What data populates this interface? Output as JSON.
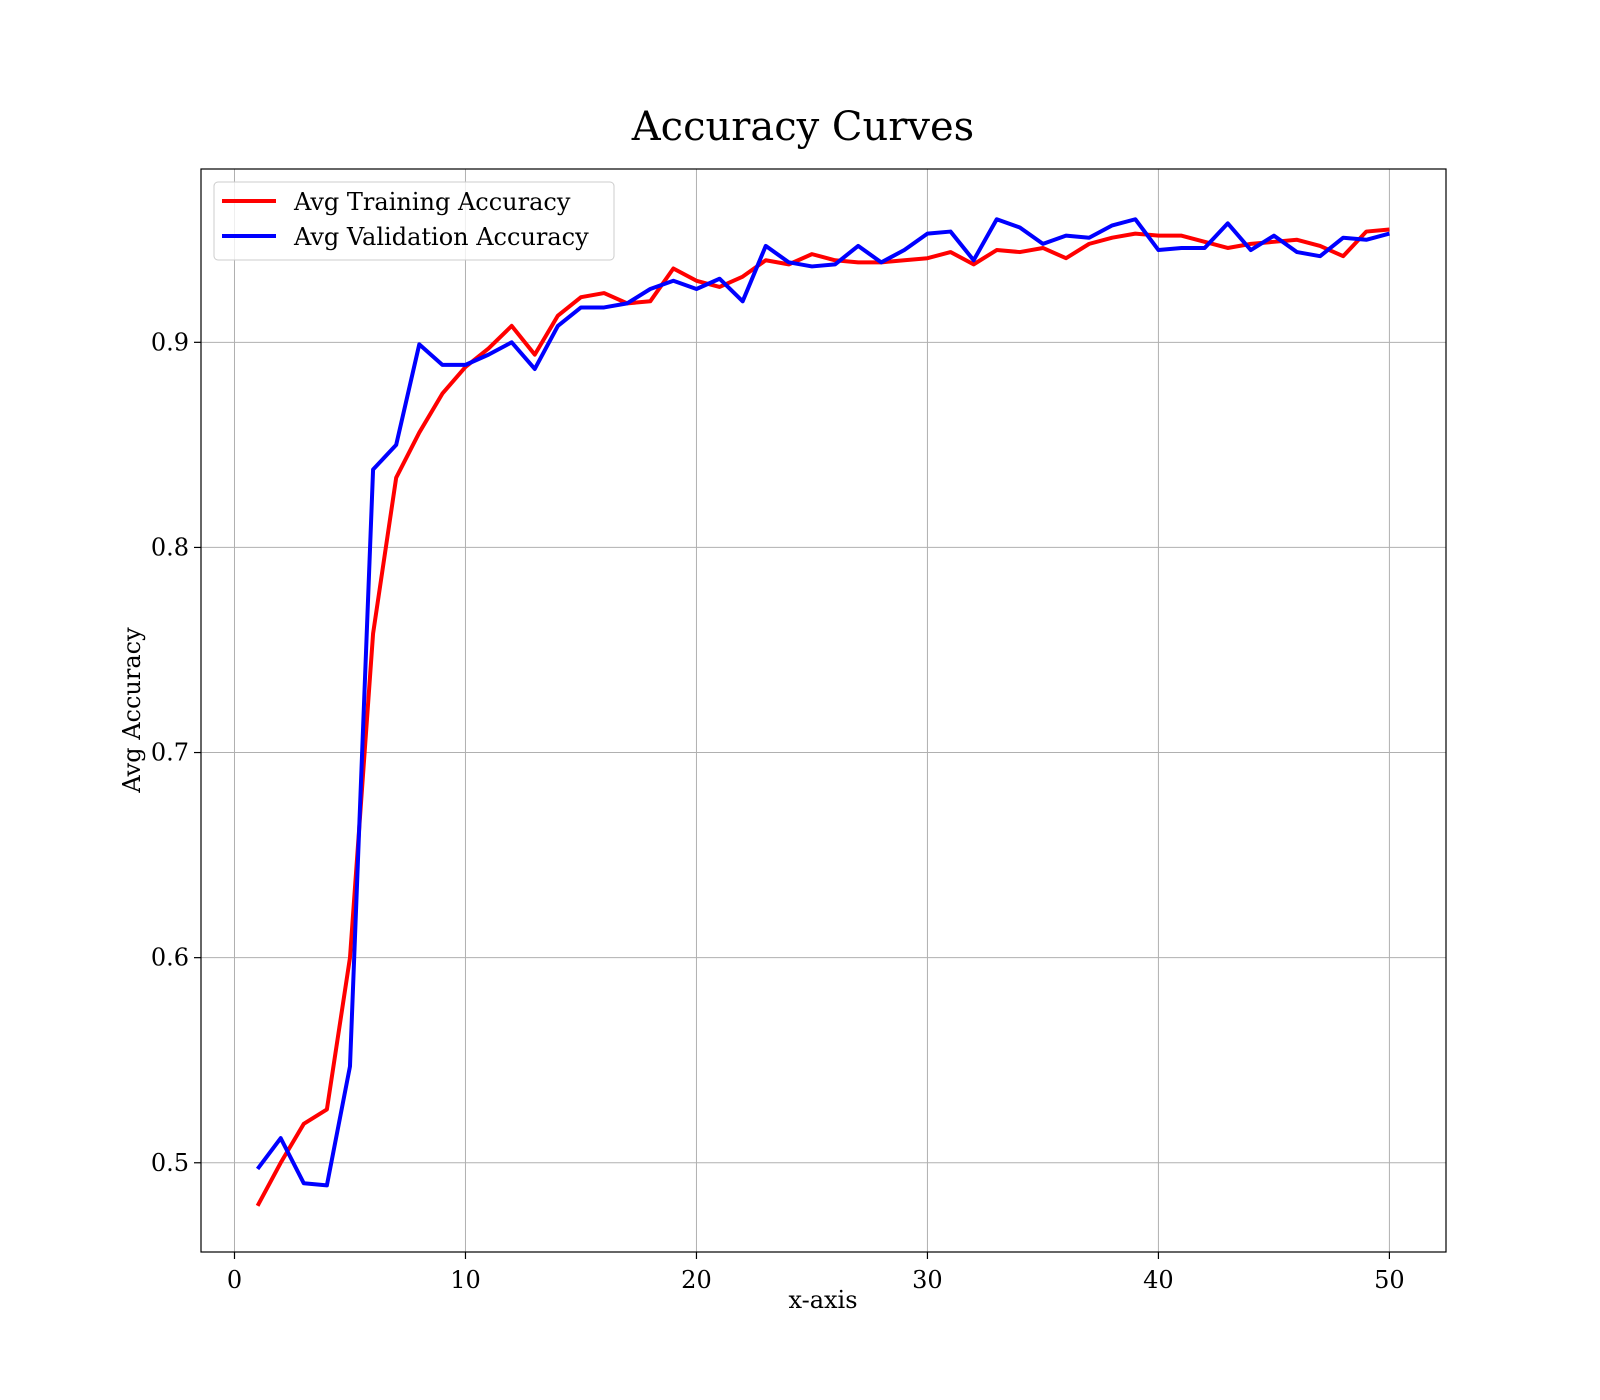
{
  "chart_data": {
    "type": "line",
    "title": "Accuracy Curves",
    "xlabel": "x-axis",
    "ylabel": "Avg Accuracy",
    "xlim": [
      -1.45,
      52.45
    ],
    "ylim": [
      0.4565,
      0.9845
    ],
    "xticks": [
      0,
      10,
      20,
      30,
      40,
      50
    ],
    "yticks": [
      0.5,
      0.6,
      0.7,
      0.8,
      0.9
    ],
    "xtick_labels": [
      "0",
      "10",
      "20",
      "30",
      "40",
      "50"
    ],
    "ytick_labels": [
      "0.5",
      "0.6",
      "0.7",
      "0.8",
      "0.9"
    ],
    "grid": true,
    "legend_position": "top-left",
    "x": [
      1,
      2,
      3,
      4,
      5,
      6,
      7,
      8,
      9,
      10,
      11,
      12,
      13,
      14,
      15,
      16,
      17,
      18,
      19,
      20,
      21,
      22,
      23,
      24,
      25,
      26,
      27,
      28,
      29,
      30,
      31,
      32,
      33,
      34,
      35,
      36,
      37,
      38,
      39,
      40,
      41,
      42,
      43,
      44,
      45,
      46,
      47,
      48,
      49,
      50
    ],
    "series": [
      {
        "name": "Avg Training Accuracy",
        "color": "#ff0000",
        "values": [
          0.479,
          0.5,
          0.519,
          0.526,
          0.6,
          0.758,
          0.834,
          0.856,
          0.875,
          0.888,
          0.897,
          0.908,
          0.894,
          0.913,
          0.922,
          0.924,
          0.919,
          0.92,
          0.936,
          0.93,
          0.927,
          0.932,
          0.94,
          0.938,
          0.943,
          0.94,
          0.939,
          0.939,
          0.94,
          0.941,
          0.944,
          0.938,
          0.945,
          0.944,
          0.946,
          0.941,
          0.948,
          0.951,
          0.953,
          0.952,
          0.952,
          0.949,
          0.946,
          0.948,
          0.949,
          0.95,
          0.947,
          0.942,
          0.954,
          0.955
        ]
      },
      {
        "name": "Avg Validation Accuracy",
        "color": "#0000ff",
        "values": [
          0.497,
          0.512,
          0.49,
          0.489,
          0.547,
          0.838,
          0.85,
          0.899,
          0.889,
          0.889,
          0.894,
          0.9,
          0.887,
          0.908,
          0.917,
          0.917,
          0.919,
          0.926,
          0.93,
          0.926,
          0.931,
          0.92,
          0.947,
          0.939,
          0.937,
          0.938,
          0.947,
          0.939,
          0.945,
          0.953,
          0.954,
          0.94,
          0.96,
          0.956,
          0.948,
          0.952,
          0.951,
          0.957,
          0.96,
          0.945,
          0.946,
          0.946,
          0.958,
          0.945,
          0.952,
          0.944,
          0.942,
          0.951,
          0.95,
          0.953
        ]
      }
    ]
  }
}
